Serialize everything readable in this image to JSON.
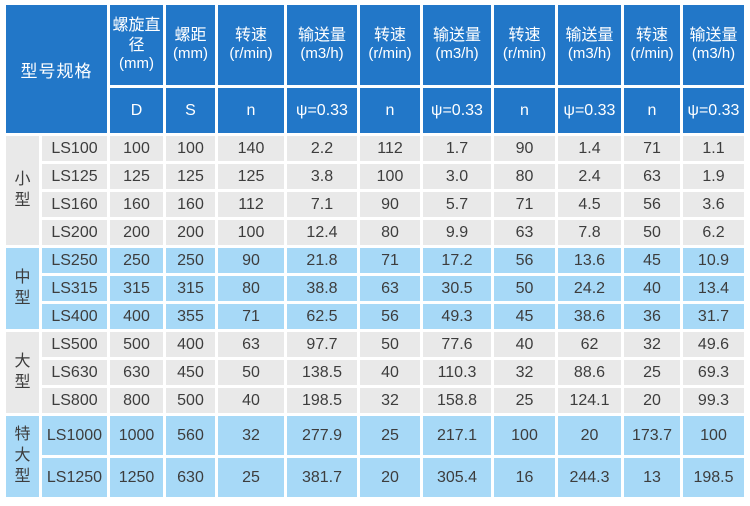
{
  "colors": {
    "header_bg": "#2277c8",
    "row_gray": "#e9e9e9",
    "row_blue": "#a7d9f7",
    "text_dark": "#3d3d3d",
    "header_text": "#ffffff",
    "border": "#ffffff"
  },
  "table": {
    "model_spec_label": "型号规格",
    "columns": [
      {
        "label": "螺旋直径",
        "unit": "(mm)",
        "sub": "D"
      },
      {
        "label": "螺距",
        "unit": "(mm)",
        "sub": "S"
      },
      {
        "label": "转速",
        "unit": "(r/min)",
        "sub": "n"
      },
      {
        "label": "输送量",
        "unit": "(m3/h)",
        "sub": "ψ=0.33"
      },
      {
        "label": "转速",
        "unit": "(r/min)",
        "sub": "n"
      },
      {
        "label": "输送量",
        "unit": "(m3/h)",
        "sub": "ψ=0.33"
      },
      {
        "label": "转速",
        "unit": "(r/min)",
        "sub": "n"
      },
      {
        "label": "输送量",
        "unit": "(m3/h)",
        "sub": "ψ=0.33"
      },
      {
        "label": "转速",
        "unit": "(r/min)",
        "sub": "n"
      },
      {
        "label": "输送量",
        "unit": "(m3/h)",
        "sub": "ψ=0.33"
      }
    ],
    "groups": [
      {
        "name": "小型",
        "tone": "gray",
        "tall": false,
        "rows": [
          {
            "model": "LS100",
            "values": [
              "100",
              "100",
              "140",
              "2.2",
              "112",
              "1.7",
              "90",
              "1.4",
              "71",
              "1.1"
            ]
          },
          {
            "model": "LS125",
            "values": [
              "125",
              "125",
              "125",
              "3.8",
              "100",
              "3.0",
              "80",
              "2.4",
              "63",
              "1.9"
            ]
          },
          {
            "model": "LS160",
            "values": [
              "160",
              "160",
              "112",
              "7.1",
              "90",
              "5.7",
              "71",
              "4.5",
              "56",
              "3.6"
            ]
          },
          {
            "model": "LS200",
            "values": [
              "200",
              "200",
              "100",
              "12.4",
              "80",
              "9.9",
              "63",
              "7.8",
              "50",
              "6.2"
            ]
          }
        ]
      },
      {
        "name": "中型",
        "tone": "blue",
        "tall": false,
        "rows": [
          {
            "model": "LS250",
            "values": [
              "250",
              "250",
              "90",
              "21.8",
              "71",
              "17.2",
              "56",
              "13.6",
              "45",
              "10.9"
            ]
          },
          {
            "model": "LS315",
            "values": [
              "315",
              "315",
              "80",
              "38.8",
              "63",
              "30.5",
              "50",
              "24.2",
              "40",
              "13.4"
            ]
          },
          {
            "model": "LS400",
            "values": [
              "400",
              "355",
              "71",
              "62.5",
              "56",
              "49.3",
              "45",
              "38.6",
              "36",
              "31.7"
            ]
          }
        ]
      },
      {
        "name": "大型",
        "tone": "gray",
        "tall": false,
        "rows": [
          {
            "model": "LS500",
            "values": [
              "500",
              "400",
              "63",
              "97.7",
              "50",
              "77.6",
              "40",
              "62",
              "32",
              "49.6"
            ]
          },
          {
            "model": "LS630",
            "values": [
              "630",
              "450",
              "50",
              "138.5",
              "40",
              "110.3",
              "32",
              "88.6",
              "25",
              "69.3"
            ]
          },
          {
            "model": "LS800",
            "values": [
              "800",
              "500",
              "40",
              "198.5",
              "32",
              "158.8",
              "25",
              "124.1",
              "20",
              "99.3"
            ]
          }
        ]
      },
      {
        "name": "特大型",
        "tone": "blue",
        "tall": true,
        "rows": [
          {
            "model": "LS1000",
            "values": [
              "1000",
              "560",
              "32",
              "277.9",
              "25",
              "217.1",
              "100",
              "20",
              "173.7",
              "100"
            ]
          },
          {
            "model": "LS1250",
            "values": [
              "1250",
              "630",
              "25",
              "381.7",
              "20",
              "305.4",
              "16",
              "244.3",
              "13",
              "198.5"
            ]
          }
        ]
      }
    ]
  }
}
